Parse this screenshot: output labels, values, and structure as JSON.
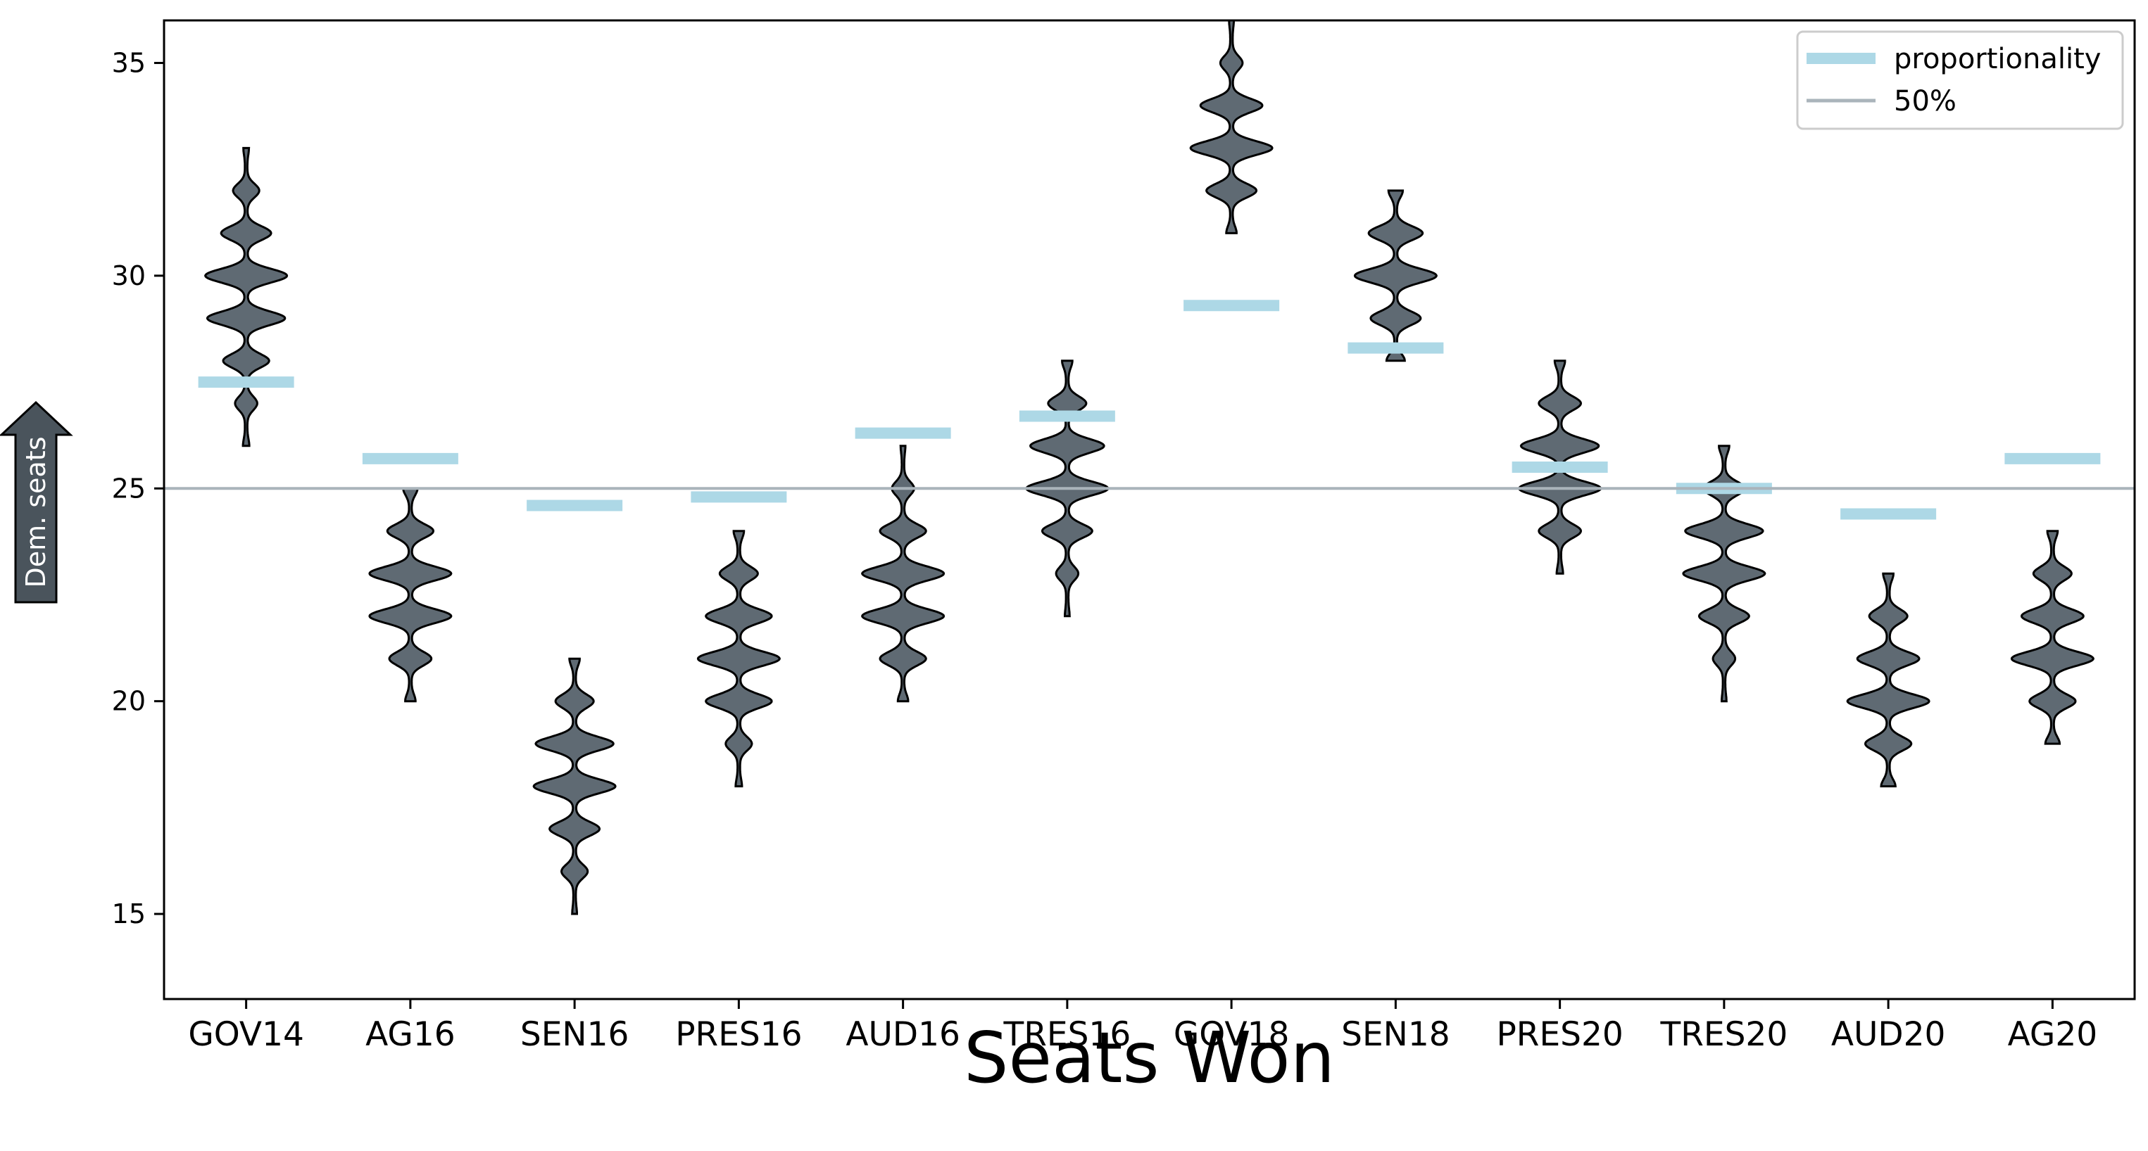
{
  "chart_data": {
    "type": "violin",
    "title": "",
    "xlabel": "Seats Won",
    "ylabel": "Dem. seats",
    "ylim": [
      13.0,
      36.0
    ],
    "yticks": [
      15,
      20,
      25,
      30,
      35
    ],
    "grid": false,
    "legend_position": "top-right",
    "legend": [
      {
        "label": "proportionality",
        "style": "thick-line",
        "color": "#add8e6"
      },
      {
        "label": "50%",
        "style": "line",
        "color": "#aaaaaa"
      }
    ],
    "reference_line": {
      "label": "50%",
      "y": 25
    },
    "categories": [
      "GOV14",
      "AG16",
      "SEN16",
      "PRES16",
      "AUD16",
      "TRES16",
      "GOV18",
      "SEN18",
      "PRES20",
      "TRES20",
      "AUD20",
      "AG20"
    ],
    "proportionality": [
      27.5,
      25.7,
      24.6,
      24.8,
      26.3,
      26.7,
      29.3,
      28.3,
      25.5,
      25.0,
      24.4,
      25.7
    ],
    "distributions": [
      {
        "min": 26,
        "max": 33,
        "counts": {
          "26": 0.05,
          "27": 0.25,
          "28": 0.55,
          "29": 0.95,
          "30": 1.0,
          "31": 0.6,
          "32": 0.3,
          "33": 0.04
        }
      },
      {
        "min": 20,
        "max": 25,
        "counts": {
          "20": 0.1,
          "21": 0.5,
          "22": 1.0,
          "23": 1.0,
          "24": 0.55,
          "25": 0.15
        }
      },
      {
        "min": 15,
        "max": 21,
        "counts": {
          "15": 0.03,
          "16": 0.3,
          "17": 0.6,
          "18": 1.0,
          "19": 0.95,
          "20": 0.45,
          "21": 0.1
        }
      },
      {
        "min": 18,
        "max": 24,
        "counts": {
          "18": 0.05,
          "19": 0.3,
          "20": 0.8,
          "21": 1.0,
          "22": 0.8,
          "23": 0.45,
          "24": 0.1
        }
      },
      {
        "min": 20,
        "max": 26,
        "counts": {
          "20": 0.1,
          "21": 0.55,
          "22": 1.0,
          "23": 1.0,
          "24": 0.55,
          "25": 0.25,
          "26": 0.03
        }
      },
      {
        "min": 22,
        "max": 28,
        "counts": {
          "22": 0.03,
          "23": 0.25,
          "24": 0.6,
          "25": 1.0,
          "26": 0.9,
          "27": 0.45,
          "28": 0.1
        }
      },
      {
        "min": 31,
        "max": 36,
        "counts": {
          "31": 0.1,
          "32": 0.6,
          "33": 1.0,
          "34": 0.75,
          "35": 0.25,
          "36": 0.03
        }
      },
      {
        "min": 28,
        "max": 32,
        "counts": {
          "28": 0.2,
          "29": 0.6,
          "30": 1.0,
          "31": 0.65,
          "32": 0.15
        }
      },
      {
        "min": 23,
        "max": 28,
        "counts": {
          "23": 0.05,
          "24": 0.5,
          "25": 1.0,
          "26": 0.95,
          "27": 0.5,
          "28": 0.1
        }
      },
      {
        "min": 20,
        "max": 26,
        "counts": {
          "20": 0.03,
          "21": 0.25,
          "22": 0.6,
          "23": 1.0,
          "24": 0.95,
          "25": 0.5,
          "26": 0.1
        }
      },
      {
        "min": 18,
        "max": 23,
        "counts": {
          "18": 0.15,
          "19": 0.55,
          "20": 1.0,
          "21": 0.75,
          "22": 0.45,
          "23": 0.1
        }
      },
      {
        "min": 19,
        "max": 24,
        "counts": {
          "19": 0.15,
          "20": 0.55,
          "21": 1.0,
          "22": 0.75,
          "23": 0.45,
          "24": 0.1
        }
      }
    ]
  },
  "colors": {
    "violin_fill": "#5f6a73",
    "violin_edge": "#000000",
    "proportionality": "#add8e6",
    "half_line": "#aab4bb",
    "arrow_fill": "#4a545c"
  }
}
